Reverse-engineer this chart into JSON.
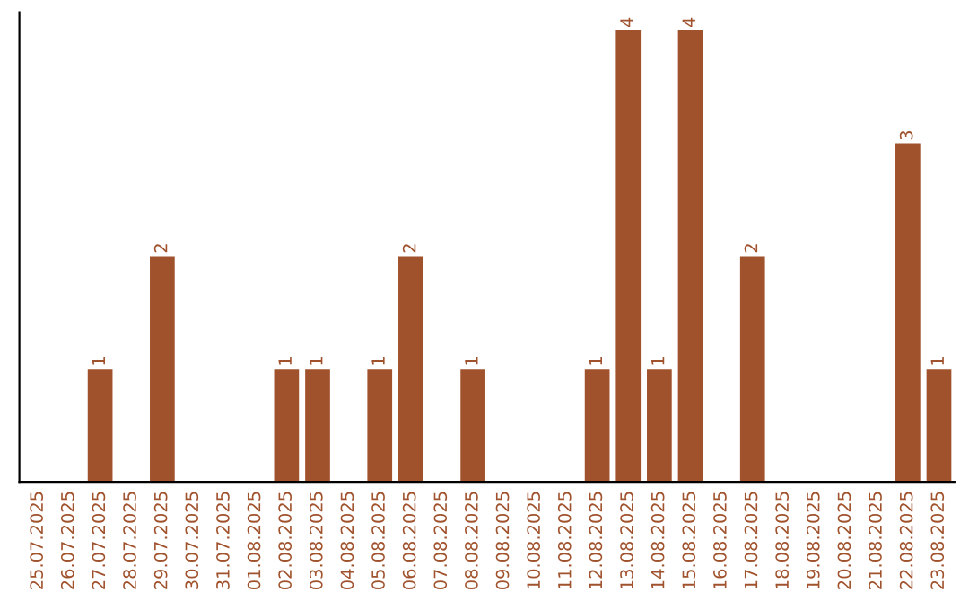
{
  "chart_data": {
    "type": "bar",
    "categories": [
      "25.07.2025",
      "26.07.2025",
      "27.07.2025",
      "28.07.2025",
      "29.07.2025",
      "30.07.2025",
      "31.07.2025",
      "01.08.2025",
      "02.08.2025",
      "03.08.2025",
      "04.08.2025",
      "05.08.2025",
      "06.08.2025",
      "07.08.2025",
      "08.08.2025",
      "09.08.2025",
      "10.08.2025",
      "11.08.2025",
      "12.08.2025",
      "13.08.2025",
      "14.08.2025",
      "15.08.2025",
      "16.08.2025",
      "17.08.2025",
      "18.08.2025",
      "19.08.2025",
      "20.08.2025",
      "21.08.2025",
      "22.08.2025",
      "23.08.2025"
    ],
    "values": [
      0,
      0,
      1,
      0,
      2,
      0,
      0,
      0,
      1,
      1,
      0,
      1,
      2,
      0,
      1,
      0,
      0,
      0,
      1,
      4,
      1,
      4,
      0,
      2,
      0,
      0,
      0,
      0,
      3,
      1
    ],
    "color": "#a0522d",
    "value_labels": [
      null,
      null,
      "1",
      null,
      "2",
      null,
      null,
      null,
      "1",
      "1",
      null,
      "1",
      "2",
      null,
      "1",
      null,
      null,
      null,
      "1",
      "4",
      "1",
      "4",
      null,
      "2",
      null,
      null,
      null,
      null,
      "3",
      "1"
    ],
    "tick_labels": "x",
    "grid": false,
    "legend": false
  }
}
